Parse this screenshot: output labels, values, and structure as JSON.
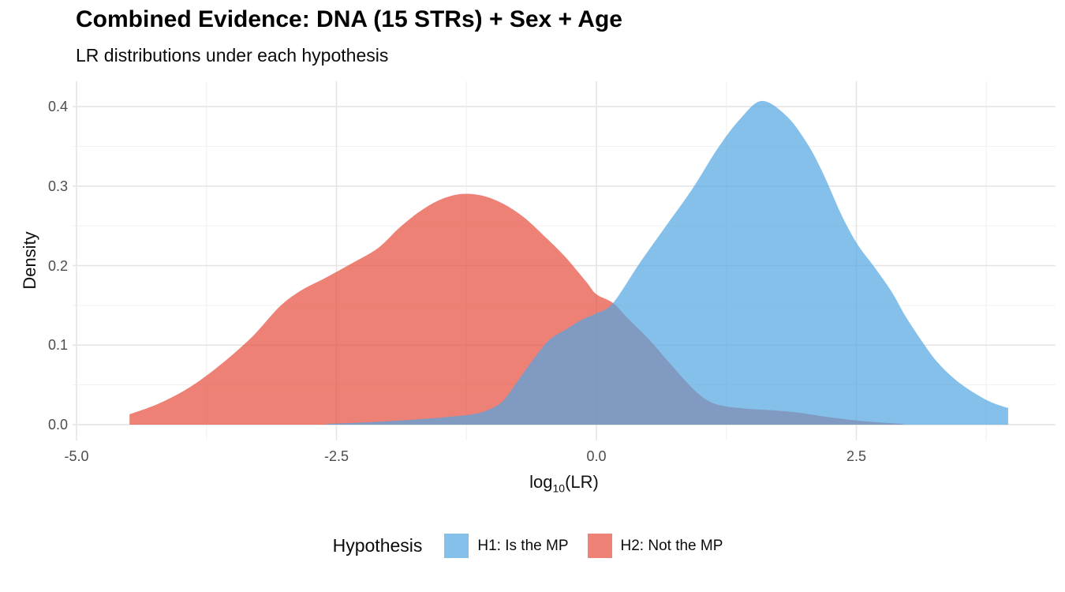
{
  "title": "Combined Evidence: DNA (15 STRs) + Sex + Age",
  "subtitle": "LR distributions under each hypothesis",
  "axes": {
    "x": {
      "label_prefix": "log",
      "label_sub": "10",
      "label_suffix": "(LR)",
      "ticks": [
        {
          "label": "-5.0",
          "value": -5.0
        },
        {
          "label": "-2.5",
          "value": -2.5
        },
        {
          "label": "0.0",
          "value": 0.0
        },
        {
          "label": "2.5",
          "value": 2.5
        }
      ],
      "minor_values": [
        -3.75,
        -1.25,
        1.25,
        3.75
      ]
    },
    "y": {
      "label": "Density",
      "ticks": [
        {
          "label": "0.0",
          "value": 0.0
        },
        {
          "label": "0.1",
          "value": 0.1
        },
        {
          "label": "0.2",
          "value": 0.2
        },
        {
          "label": "0.3",
          "value": 0.3
        },
        {
          "label": "0.4",
          "value": 0.4
        }
      ],
      "minor_values": [
        0.05,
        0.15,
        0.25,
        0.35
      ]
    }
  },
  "legend": {
    "title": "Hypothesis",
    "items": [
      {
        "label": "H1: Is the MP",
        "swatch_color": "#85C0EA"
      },
      {
        "label": "H2: Not the MP",
        "swatch_color": "#EE8276"
      }
    ]
  },
  "colors": {
    "background": "#ffffff",
    "grid_major": "#e4e4e4",
    "grid_minor": "#f1f1f1",
    "tick_text": "#4d4d4d",
    "h1_fill": "#51A5E1",
    "h2_fill": "#E74C3B",
    "fill_opacity": 0.7
  },
  "chart_data": {
    "type": "area",
    "title": "Combined Evidence: DNA (15 STRs) + Sex + Age",
    "subtitle": "LR distributions under each hypothesis",
    "xlabel": "log10(LR)",
    "ylabel": "Density",
    "xlim": [
      -5.03,
      4.42
    ],
    "ylim": [
      0,
      0.425
    ],
    "grid": "on",
    "legend_position": "bottom",
    "legend_title": "Hypothesis",
    "series": [
      {
        "name": "H2: Not the MP",
        "fill": "#E74C3B",
        "opacity": 0.7,
        "points": [
          [
            -4.49,
            0.013
          ],
          [
            -4.2,
            0.027
          ],
          [
            -3.9,
            0.048
          ],
          [
            -3.6,
            0.077
          ],
          [
            -3.3,
            0.112
          ],
          [
            -3.05,
            0.148
          ],
          [
            -2.85,
            0.168
          ],
          [
            -2.6,
            0.185
          ],
          [
            -2.35,
            0.203
          ],
          [
            -2.1,
            0.222
          ],
          [
            -1.9,
            0.247
          ],
          [
            -1.7,
            0.268
          ],
          [
            -1.5,
            0.283
          ],
          [
            -1.3,
            0.29
          ],
          [
            -1.1,
            0.288
          ],
          [
            -0.9,
            0.278
          ],
          [
            -0.7,
            0.261
          ],
          [
            -0.5,
            0.237
          ],
          [
            -0.3,
            0.211
          ],
          [
            -0.1,
            0.18
          ],
          [
            0.0,
            0.164
          ],
          [
            0.16,
            0.153
          ],
          [
            0.3,
            0.134
          ],
          [
            0.5,
            0.108
          ],
          [
            0.7,
            0.078
          ],
          [
            0.9,
            0.049
          ],
          [
            1.05,
            0.032
          ],
          [
            1.2,
            0.024
          ],
          [
            1.45,
            0.02
          ],
          [
            1.7,
            0.018
          ],
          [
            1.95,
            0.015
          ],
          [
            2.2,
            0.01
          ],
          [
            2.45,
            0.006
          ],
          [
            2.7,
            0.003
          ],
          [
            2.95,
            0.001
          ]
        ]
      },
      {
        "name": "H1: Is the MP",
        "fill": "#51A5E1",
        "opacity": 0.7,
        "points": [
          [
            -2.6,
            0.001
          ],
          [
            -2.2,
            0.003
          ],
          [
            -1.8,
            0.006
          ],
          [
            -1.4,
            0.01
          ],
          [
            -1.15,
            0.014
          ],
          [
            -1.0,
            0.021
          ],
          [
            -0.89,
            0.031
          ],
          [
            -0.74,
            0.058
          ],
          [
            -0.59,
            0.085
          ],
          [
            -0.45,
            0.107
          ],
          [
            -0.29,
            0.12
          ],
          [
            -0.14,
            0.132
          ],
          [
            0.0,
            0.14
          ],
          [
            0.16,
            0.153
          ],
          [
            0.42,
            0.204
          ],
          [
            0.67,
            0.25
          ],
          [
            0.92,
            0.296
          ],
          [
            1.17,
            0.348
          ],
          [
            1.38,
            0.384
          ],
          [
            1.59,
            0.407
          ],
          [
            1.83,
            0.388
          ],
          [
            2.03,
            0.353
          ],
          [
            2.18,
            0.316
          ],
          [
            2.36,
            0.263
          ],
          [
            2.51,
            0.227
          ],
          [
            2.68,
            0.197
          ],
          [
            2.84,
            0.167
          ],
          [
            2.97,
            0.137
          ],
          [
            3.12,
            0.107
          ],
          [
            3.27,
            0.08
          ],
          [
            3.44,
            0.058
          ],
          [
            3.62,
            0.041
          ],
          [
            3.8,
            0.028
          ],
          [
            3.96,
            0.021
          ]
        ]
      }
    ]
  }
}
